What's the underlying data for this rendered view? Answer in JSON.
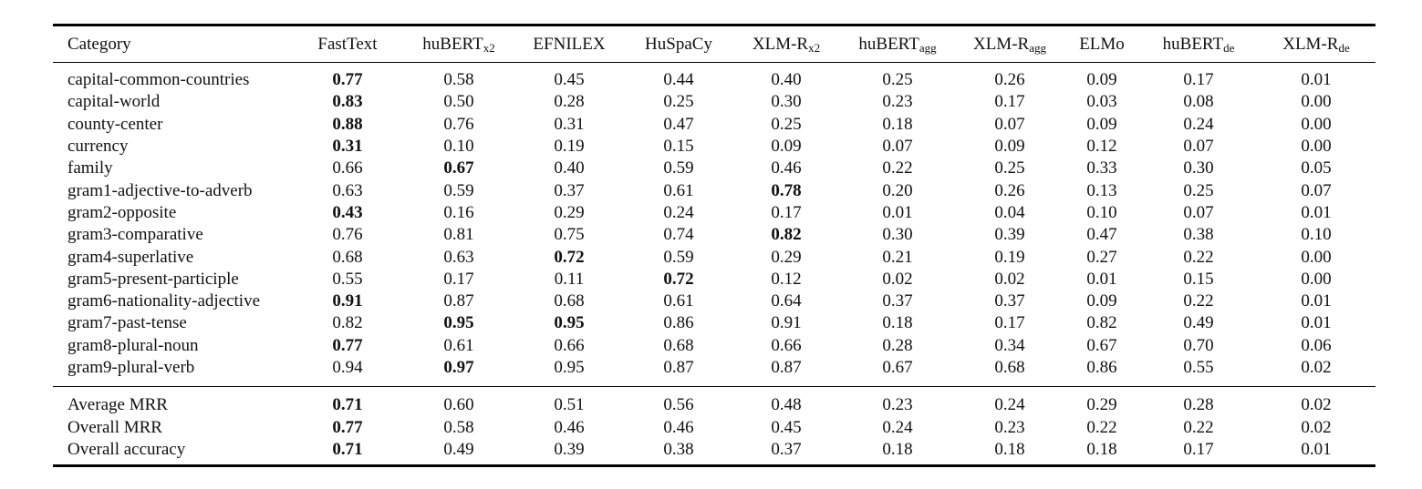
{
  "table": {
    "headers": [
      {
        "base": "Category",
        "sub": ""
      },
      {
        "base": "FastText",
        "sub": ""
      },
      {
        "base": "huBERT",
        "sub": "x2"
      },
      {
        "base": "EFNILEX",
        "sub": ""
      },
      {
        "base": "HuSpaCy",
        "sub": ""
      },
      {
        "base": "XLM-R",
        "sub": "x2"
      },
      {
        "base": "huBERT",
        "sub": "agg"
      },
      {
        "base": "XLM-R",
        "sub": "agg"
      },
      {
        "base": "ELMo",
        "sub": ""
      },
      {
        "base": "huBERT",
        "sub": "de"
      },
      {
        "base": "XLM-R",
        "sub": "de"
      }
    ],
    "rows": [
      {
        "category": "capital-common-countries",
        "values": [
          "0.77",
          "0.58",
          "0.45",
          "0.44",
          "0.40",
          "0.25",
          "0.26",
          "0.09",
          "0.17",
          "0.01"
        ],
        "bold": [
          0
        ]
      },
      {
        "category": "capital-world",
        "values": [
          "0.83",
          "0.50",
          "0.28",
          "0.25",
          "0.30",
          "0.23",
          "0.17",
          "0.03",
          "0.08",
          "0.00"
        ],
        "bold": [
          0
        ]
      },
      {
        "category": "county-center",
        "values": [
          "0.88",
          "0.76",
          "0.31",
          "0.47",
          "0.25",
          "0.18",
          "0.07",
          "0.09",
          "0.24",
          "0.00"
        ],
        "bold": [
          0
        ]
      },
      {
        "category": "currency",
        "values": [
          "0.31",
          "0.10",
          "0.19",
          "0.15",
          "0.09",
          "0.07",
          "0.09",
          "0.12",
          "0.07",
          "0.00"
        ],
        "bold": [
          0
        ]
      },
      {
        "category": "family",
        "values": [
          "0.66",
          "0.67",
          "0.40",
          "0.59",
          "0.46",
          "0.22",
          "0.25",
          "0.33",
          "0.30",
          "0.05"
        ],
        "bold": [
          1
        ]
      },
      {
        "category": "gram1-adjective-to-adverb",
        "values": [
          "0.63",
          "0.59",
          "0.37",
          "0.61",
          "0.78",
          "0.20",
          "0.26",
          "0.13",
          "0.25",
          "0.07"
        ],
        "bold": [
          4
        ]
      },
      {
        "category": "gram2-opposite",
        "values": [
          "0.43",
          "0.16",
          "0.29",
          "0.24",
          "0.17",
          "0.01",
          "0.04",
          "0.10",
          "0.07",
          "0.01"
        ],
        "bold": [
          0
        ]
      },
      {
        "category": "gram3-comparative",
        "values": [
          "0.76",
          "0.81",
          "0.75",
          "0.74",
          "0.82",
          "0.30",
          "0.39",
          "0.47",
          "0.38",
          "0.10"
        ],
        "bold": [
          4
        ]
      },
      {
        "category": "gram4-superlative",
        "values": [
          "0.68",
          "0.63",
          "0.72",
          "0.59",
          "0.29",
          "0.21",
          "0.19",
          "0.27",
          "0.22",
          "0.00"
        ],
        "bold": [
          2
        ]
      },
      {
        "category": "gram5-present-participle",
        "values": [
          "0.55",
          "0.17",
          "0.11",
          "0.72",
          "0.12",
          "0.02",
          "0.02",
          "0.01",
          "0.15",
          "0.00"
        ],
        "bold": [
          3
        ]
      },
      {
        "category": "gram6-nationality-adjective",
        "values": [
          "0.91",
          "0.87",
          "0.68",
          "0.61",
          "0.64",
          "0.37",
          "0.37",
          "0.09",
          "0.22",
          "0.01"
        ],
        "bold": [
          0
        ]
      },
      {
        "category": "gram7-past-tense",
        "values": [
          "0.82",
          "0.95",
          "0.95",
          "0.86",
          "0.91",
          "0.18",
          "0.17",
          "0.82",
          "0.49",
          "0.01"
        ],
        "bold": [
          1,
          2
        ]
      },
      {
        "category": "gram8-plural-noun",
        "values": [
          "0.77",
          "0.61",
          "0.66",
          "0.68",
          "0.66",
          "0.28",
          "0.34",
          "0.67",
          "0.70",
          "0.06"
        ],
        "bold": [
          0
        ]
      },
      {
        "category": "gram9-plural-verb",
        "values": [
          "0.94",
          "0.97",
          "0.95",
          "0.87",
          "0.87",
          "0.67",
          "0.68",
          "0.86",
          "0.55",
          "0.02"
        ],
        "bold": [
          1
        ]
      }
    ],
    "summary_rows": [
      {
        "category": "Average MRR",
        "values": [
          "0.71",
          "0.60",
          "0.51",
          "0.56",
          "0.48",
          "0.23",
          "0.24",
          "0.29",
          "0.28",
          "0.02"
        ],
        "bold": [
          0
        ]
      },
      {
        "category": "Overall MRR",
        "values": [
          "0.77",
          "0.58",
          "0.46",
          "0.46",
          "0.45",
          "0.24",
          "0.23",
          "0.22",
          "0.22",
          "0.02"
        ],
        "bold": [
          0
        ]
      },
      {
        "category": "Overall accuracy",
        "values": [
          "0.71",
          "0.49",
          "0.39",
          "0.38",
          "0.37",
          "0.18",
          "0.18",
          "0.18",
          "0.17",
          "0.01"
        ],
        "bold": [
          0
        ]
      }
    ]
  },
  "caption": ""
}
